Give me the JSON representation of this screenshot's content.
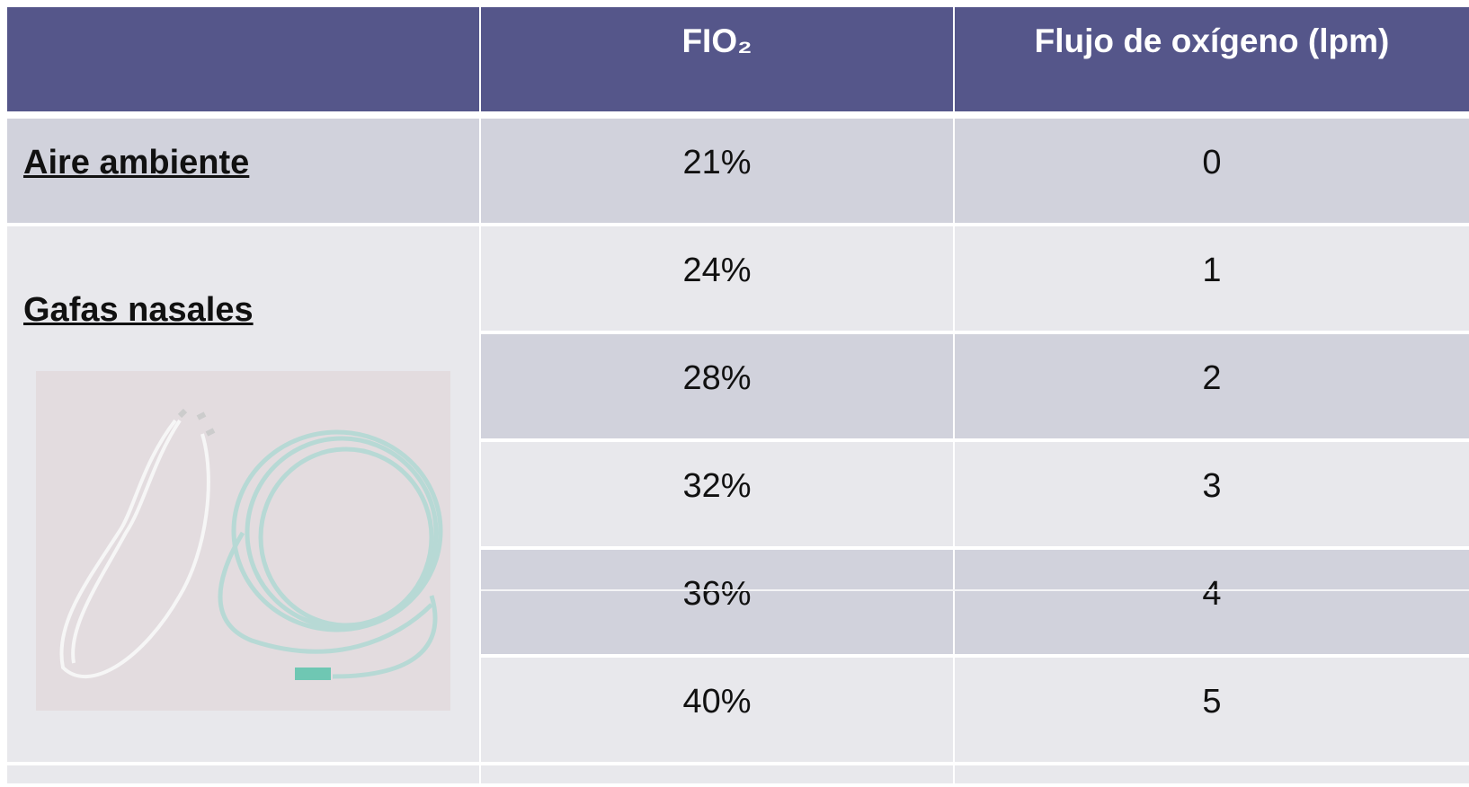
{
  "table": {
    "header": [
      "FIO₂",
      "Flujo de oxígeno (lpm)"
    ],
    "groups": [
      {
        "device": "Aire ambiente",
        "rows": [
          [
            "21%",
            0
          ]
        ]
      },
      {
        "device": "Gafas nasales",
        "rows": [
          [
            "24%",
            1
          ],
          [
            "28%",
            2
          ],
          [
            "32%",
            3
          ],
          [
            "36%",
            4
          ],
          [
            "40%",
            5
          ]
        ]
      }
    ]
  }
}
